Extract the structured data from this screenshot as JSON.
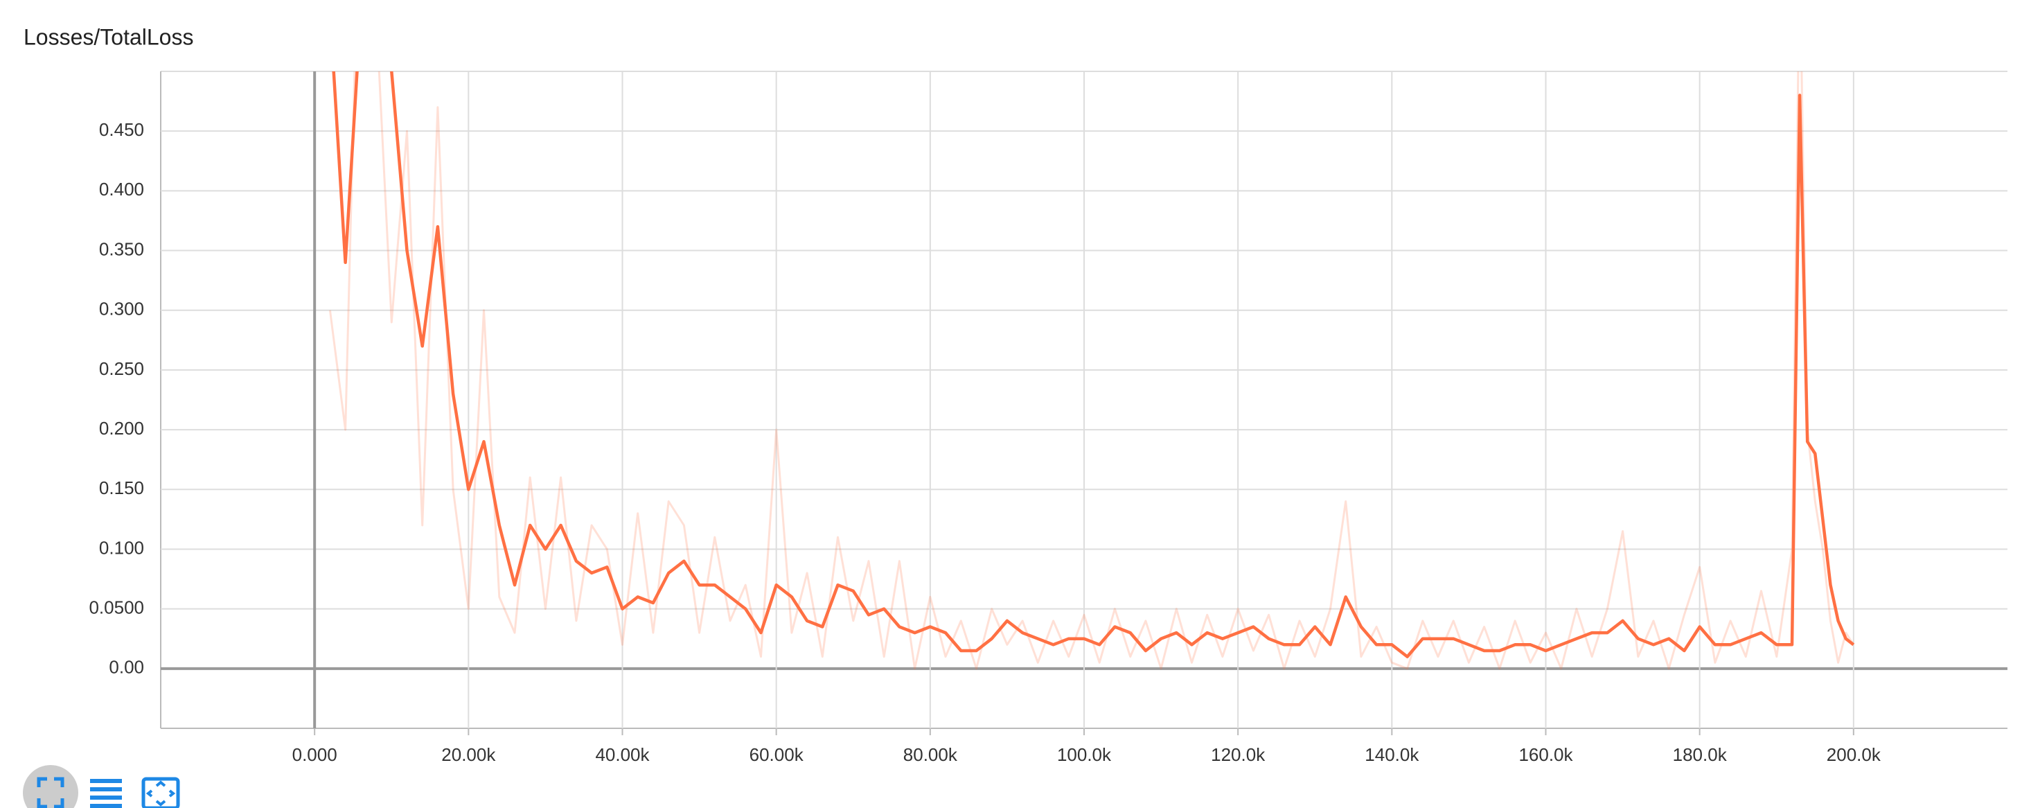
{
  "chart_data": {
    "type": "line",
    "title": "Losses/TotalLoss",
    "x": [
      2000,
      4000,
      6000,
      8000,
      10000,
      12000,
      14000,
      16000,
      18000,
      20000,
      22000,
      24000,
      26000,
      28000,
      30000,
      32000,
      34000,
      36000,
      38000,
      40000,
      42000,
      44000,
      46000,
      48000,
      50000,
      52000,
      54000,
      56000,
      58000,
      60000,
      62000,
      64000,
      66000,
      68000,
      70000,
      72000,
      74000,
      76000,
      78000,
      80000,
      82000,
      84000,
      86000,
      88000,
      90000,
      92000,
      94000,
      96000,
      98000,
      100000,
      102000,
      104000,
      106000,
      108000,
      110000,
      112000,
      114000,
      116000,
      118000,
      120000,
      122000,
      124000,
      126000,
      128000,
      130000,
      132000,
      134000,
      136000,
      138000,
      140000,
      142000,
      144000,
      146000,
      148000,
      150000,
      152000,
      154000,
      156000,
      158000,
      160000,
      162000,
      164000,
      166000,
      168000,
      170000,
      172000,
      174000,
      176000,
      178000,
      180000,
      182000,
      184000,
      186000,
      188000,
      190000,
      192000,
      193000,
      194000,
      195000,
      196000,
      197000,
      198000,
      199000,
      200000
    ],
    "series": [
      {
        "color": "#ff7043",
        "values": [
          0.3,
          0.2,
          0.7,
          0.55,
          0.29,
          0.45,
          0.12,
          0.47,
          0.15,
          0.05,
          0.3,
          0.06,
          0.03,
          0.16,
          0.05,
          0.16,
          0.04,
          0.12,
          0.1,
          0.02,
          0.13,
          0.03,
          0.14,
          0.12,
          0.03,
          0.11,
          0.04,
          0.07,
          0.01,
          0.2,
          0.03,
          0.08,
          0.01,
          0.11,
          0.04,
          0.09,
          0.01,
          0.09,
          0.0,
          0.06,
          0.01,
          0.04,
          0.0,
          0.05,
          0.02,
          0.04,
          0.005,
          0.04,
          0.01,
          0.045,
          0.005,
          0.05,
          0.01,
          0.04,
          0.0,
          0.05,
          0.005,
          0.045,
          0.01,
          0.05,
          0.015,
          0.045,
          0.0,
          0.04,
          0.01,
          0.05,
          0.14,
          0.01,
          0.035,
          0.005,
          0.0,
          0.04,
          0.01,
          0.04,
          0.005,
          0.035,
          0.0,
          0.04,
          0.005,
          0.03,
          0.0,
          0.05,
          0.01,
          0.05,
          0.115,
          0.01,
          0.04,
          0.0,
          0.045,
          0.085,
          0.005,
          0.04,
          0.01,
          0.065,
          0.01,
          0.1,
          0.6,
          0.2,
          0.14,
          0.1,
          0.04,
          0.005,
          0.03,
          0.02
        ]
      },
      {
        "color": "#ff7043",
        "values": [
          0.55,
          0.34,
          0.55,
          0.6,
          0.5,
          0.35,
          0.27,
          0.37,
          0.23,
          0.15,
          0.19,
          0.12,
          0.07,
          0.12,
          0.1,
          0.12,
          0.09,
          0.08,
          0.085,
          0.05,
          0.06,
          0.055,
          0.08,
          0.09,
          0.07,
          0.07,
          0.06,
          0.05,
          0.03,
          0.07,
          0.06,
          0.04,
          0.035,
          0.07,
          0.065,
          0.045,
          0.05,
          0.035,
          0.03,
          0.035,
          0.03,
          0.015,
          0.015,
          0.025,
          0.04,
          0.03,
          0.025,
          0.02,
          0.025,
          0.025,
          0.02,
          0.035,
          0.03,
          0.015,
          0.025,
          0.03,
          0.02,
          0.03,
          0.025,
          0.03,
          0.035,
          0.025,
          0.02,
          0.02,
          0.035,
          0.02,
          0.06,
          0.035,
          0.02,
          0.02,
          0.01,
          0.025,
          0.025,
          0.025,
          0.02,
          0.015,
          0.015,
          0.02,
          0.02,
          0.015,
          0.02,
          0.025,
          0.03,
          0.03,
          0.04,
          0.025,
          0.02,
          0.025,
          0.015,
          0.035,
          0.02,
          0.02,
          0.025,
          0.03,
          0.02,
          0.02,
          0.48,
          0.19,
          0.18,
          0.125,
          0.07,
          0.04,
          0.025,
          0.02
        ]
      }
    ],
    "xlim": [
      -20000,
      220000
    ],
    "ylim": [
      -0.05,
      0.5
    ],
    "xticks": [
      {
        "value": 0,
        "label": "0.000"
      },
      {
        "value": 20000,
        "label": "20.00k"
      },
      {
        "value": 40000,
        "label": "40.00k"
      },
      {
        "value": 60000,
        "label": "60.00k"
      },
      {
        "value": 80000,
        "label": "80.00k"
      },
      {
        "value": 100000,
        "label": "100.0k"
      },
      {
        "value": 120000,
        "label": "120.0k"
      },
      {
        "value": 140000,
        "label": "140.0k"
      },
      {
        "value": 160000,
        "label": "160.0k"
      },
      {
        "value": 180000,
        "label": "180.0k"
      },
      {
        "value": 200000,
        "label": "200.0k"
      }
    ],
    "yticks": [
      {
        "value": 0,
        "label": "0.00"
      },
      {
        "value": 0.05,
        "label": "0.0500"
      },
      {
        "value": 0.1,
        "label": "0.100"
      },
      {
        "value": 0.15,
        "label": "0.150"
      },
      {
        "value": 0.2,
        "label": "0.200"
      },
      {
        "value": 0.25,
        "label": "0.250"
      },
      {
        "value": 0.3,
        "label": "0.300"
      },
      {
        "value": 0.35,
        "label": "0.350"
      },
      {
        "value": 0.4,
        "label": "0.400"
      },
      {
        "value": 0.45,
        "label": "0.450"
      }
    ],
    "grid": true
  }
}
